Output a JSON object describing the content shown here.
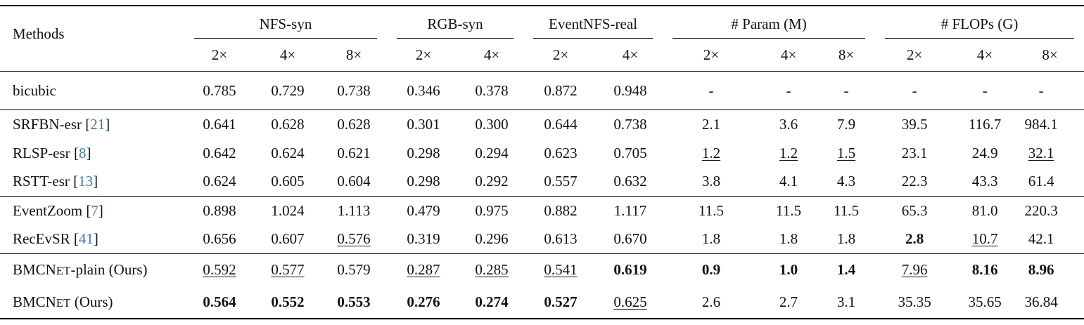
{
  "colors": {
    "citation": "#3d7ab5",
    "rule": "#000000",
    "text": "#111111",
    "background": "#ffffff"
  },
  "table": {
    "cite_open": " [",
    "cite_close": "]",
    "header": {
      "methods_label": "Methods",
      "groups": [
        {
          "label": "NFS-syn",
          "cols": [
            "2×",
            "4×",
            "8×"
          ]
        },
        {
          "label": "RGB-syn",
          "cols": [
            "2×",
            "4×"
          ]
        },
        {
          "label": "EventNFS-real",
          "cols": [
            "2×",
            "4×"
          ]
        },
        {
          "label": "# Param (M)",
          "cols": [
            "2×",
            "4×",
            "8×"
          ]
        },
        {
          "label": "# FLOPs (G)",
          "cols": [
            "2×",
            "4×",
            "8×"
          ]
        }
      ]
    },
    "row_groups": [
      [
        {
          "method": {
            "label": "bicubic"
          },
          "values": [
            "0.785",
            "0.729",
            "0.738",
            "0.346",
            "0.378",
            "0.872",
            "0.948",
            "-",
            "-",
            "-",
            "-",
            "-",
            "-"
          ],
          "styles": [
            "",
            "",
            "",
            "",
            "",
            "",
            "",
            "",
            "",
            "",
            "",
            "",
            ""
          ]
        }
      ],
      [
        {
          "method": {
            "label": "SRFBN-esr",
            "cite": "21"
          },
          "values": [
            "0.641",
            "0.628",
            "0.628",
            "0.301",
            "0.300",
            "0.644",
            "0.738",
            "2.1",
            "3.6",
            "7.9",
            "39.5",
            "116.7",
            "984.1"
          ],
          "styles": [
            "",
            "",
            "",
            "",
            "",
            "",
            "",
            "",
            "",
            "",
            "",
            "",
            ""
          ]
        },
        {
          "method": {
            "label": "RLSP-esr",
            "cite": "8"
          },
          "values": [
            "0.642",
            "0.624",
            "0.621",
            "0.298",
            "0.294",
            "0.623",
            "0.705",
            "1.2",
            "1.2",
            "1.5",
            "23.1",
            "24.9",
            "32.1"
          ],
          "styles": [
            "",
            "",
            "",
            "",
            "",
            "",
            "",
            "u",
            "u",
            "u",
            "",
            "",
            "u"
          ]
        },
        {
          "method": {
            "label": "RSTT-esr",
            "cite": "13"
          },
          "values": [
            "0.624",
            "0.605",
            "0.604",
            "0.298",
            "0.292",
            "0.557",
            "0.632",
            "3.8",
            "4.1",
            "4.3",
            "22.3",
            "43.3",
            "61.4"
          ],
          "styles": [
            "",
            "",
            "",
            "",
            "",
            "",
            "",
            "",
            "",
            "",
            "",
            "",
            ""
          ]
        }
      ],
      [
        {
          "method": {
            "label": "EventZoom",
            "cite": "7"
          },
          "values": [
            "0.898",
            "1.024",
            "1.113",
            "0.479",
            "0.975",
            "0.882",
            "1.117",
            "11.5",
            "11.5",
            "11.5",
            "65.3",
            "81.0",
            "220.3"
          ],
          "styles": [
            "",
            "",
            "",
            "",
            "",
            "",
            "",
            "",
            "",
            "",
            "",
            "",
            ""
          ]
        },
        {
          "method": {
            "label": "RecEvSR",
            "cite": "41"
          },
          "values": [
            "0.656",
            "0.607",
            "0.576",
            "0.319",
            "0.296",
            "0.613",
            "0.670",
            "1.8",
            "1.8",
            "1.8",
            "2.8",
            "10.7",
            "42.1"
          ],
          "styles": [
            "",
            "",
            "u",
            "",
            "",
            "",
            "",
            "",
            "",
            "",
            "b",
            "u",
            ""
          ]
        }
      ],
      [
        {
          "method": {
            "parts": [
              {
                "text": "BMCN"
              },
              {
                "text": "ET",
                "sc": true
              },
              {
                "text": "-plain (Ours)"
              }
            ]
          },
          "values": [
            "0.592",
            "0.577",
            "0.579",
            "0.287",
            "0.285",
            "0.541",
            "0.619",
            "0.9",
            "1.0",
            "1.4",
            "7.96",
            "8.16",
            "8.96"
          ],
          "styles": [
            "u",
            "u",
            "",
            "u",
            "u",
            "u",
            "b",
            "b",
            "b",
            "b",
            "u",
            "b",
            "b"
          ]
        },
        {
          "method": {
            "parts": [
              {
                "text": "BMCN"
              },
              {
                "text": "ET",
                "sc": true
              },
              {
                "text": " (Ours)"
              }
            ]
          },
          "values": [
            "0.564",
            "0.552",
            "0.553",
            "0.276",
            "0.274",
            "0.527",
            "0.625",
            "2.6",
            "2.7",
            "3.1",
            "35.35",
            "35.65",
            "36.84"
          ],
          "styles": [
            "b",
            "b",
            "b",
            "b",
            "b",
            "b",
            "u",
            "",
            "",
            "",
            "",
            "",
            ""
          ]
        }
      ]
    ]
  }
}
